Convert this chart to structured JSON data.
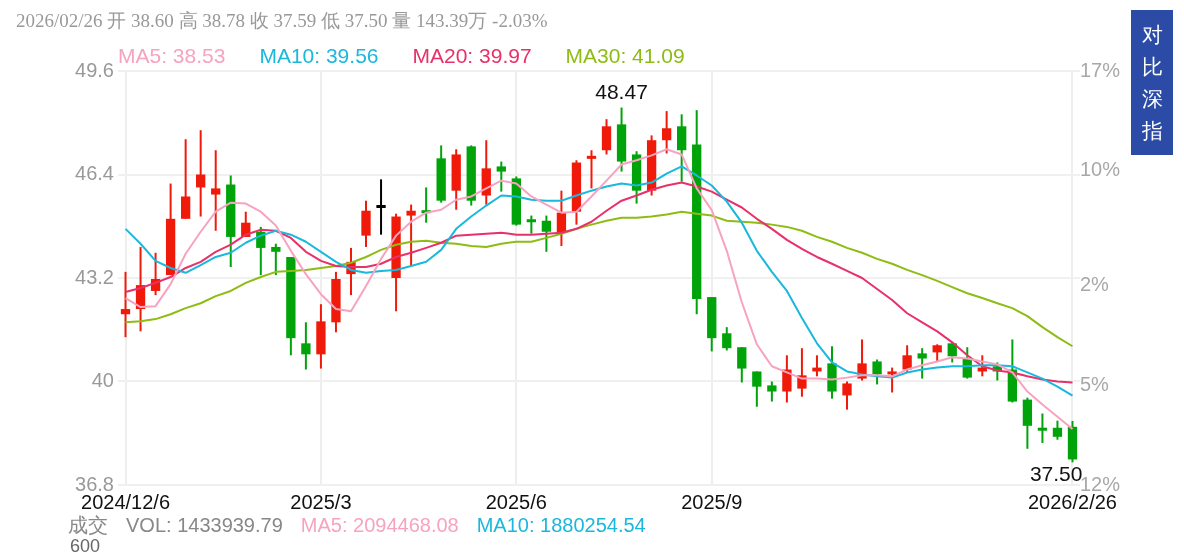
{
  "chart_data": {
    "type": "candlestick",
    "title": "2026/02/26 开 38.60 高 38.78 收 37.59 低 37.50 量 143.39万 -2.03%",
    "categories": [
      "2024/12/6",
      null,
      null,
      null,
      null,
      null,
      null,
      null,
      null,
      null,
      null,
      null,
      null,
      "2025/3",
      null,
      null,
      null,
      null,
      null,
      null,
      null,
      null,
      null,
      null,
      null,
      null,
      "2025/6",
      null,
      null,
      null,
      null,
      null,
      null,
      null,
      null,
      null,
      null,
      null,
      null,
      "2025/9",
      null,
      null,
      null,
      null,
      null,
      null,
      null,
      null,
      null,
      null,
      null,
      null,
      null,
      null,
      null,
      null,
      null,
      null,
      null,
      null,
      null,
      null,
      null,
      "2026/2/26"
    ],
    "ohlc": [
      [
        42.08,
        43.39,
        41.37,
        42.24
      ],
      [
        42.24,
        44.16,
        41.55,
        42.98
      ],
      [
        42.8,
        43.98,
        42.67,
        43.17
      ],
      [
        43.29,
        46.12,
        43.29,
        45.03
      ],
      [
        45.03,
        47.49,
        45.03,
        45.72
      ],
      [
        46.0,
        47.77,
        45.1,
        46.4
      ],
      [
        45.78,
        47.15,
        44.66,
        45.97
      ],
      [
        46.09,
        46.37,
        43.54,
        44.47
      ],
      [
        44.47,
        45.25,
        44.47,
        44.91
      ],
      [
        44.63,
        44.78,
        43.29,
        44.13
      ],
      [
        44.16,
        44.26,
        43.29,
        44.01
      ],
      [
        43.85,
        43.85,
        40.81,
        41.34
      ],
      [
        41.18,
        41.83,
        40.37,
        40.84
      ],
      [
        40.84,
        42.39,
        40.4,
        41.86
      ],
      [
        41.83,
        43.39,
        41.52,
        43.17
      ],
      [
        43.32,
        44.13,
        42.67,
        43.7
      ],
      [
        44.51,
        45.59,
        44.16,
        45.28
      ],
      [
        45.41,
        46.25,
        44.54,
        45.41
      ],
      [
        43.2,
        45.19,
        42.17,
        45.1
      ],
      [
        45.13,
        45.47,
        43.57,
        45.28
      ],
      [
        45.28,
        46.0,
        44.91,
        45.22
      ],
      [
        46.9,
        47.3,
        45.53,
        45.59
      ],
      [
        45.9,
        47.18,
        45.31,
        47.02
      ],
      [
        47.27,
        47.3,
        45.44,
        45.59
      ],
      [
        45.75,
        47.46,
        45.47,
        46.59
      ],
      [
        46.65,
        46.8,
        45.87,
        46.49
      ],
      [
        46.28,
        46.34,
        44.82,
        44.85
      ],
      [
        45.0,
        45.13,
        44.57,
        44.94
      ],
      [
        44.97,
        45.13,
        44.01,
        44.63
      ],
      [
        44.6,
        45.9,
        44.19,
        45.22
      ],
      [
        45.25,
        46.84,
        44.85,
        46.77
      ],
      [
        46.9,
        47.15,
        45.97,
        46.96
      ],
      [
        47.15,
        48.11,
        47.02,
        47.89
      ],
      [
        47.95,
        48.47,
        46.49,
        46.8
      ],
      [
        47.02,
        47.12,
        45.5,
        45.9
      ],
      [
        45.9,
        47.61,
        45.75,
        47.46
      ],
      [
        47.46,
        48.36,
        47.05,
        47.83
      ],
      [
        47.89,
        48.26,
        46.18,
        47.15
      ],
      [
        47.33,
        48.39,
        42.08,
        42.55
      ],
      [
        42.61,
        42.61,
        40.93,
        41.34
      ],
      [
        41.49,
        41.68,
        40.96,
        41.03
      ],
      [
        41.06,
        41.06,
        39.97,
        40.4
      ],
      [
        40.31,
        40.31,
        39.22,
        39.84
      ],
      [
        39.88,
        40.0,
        39.38,
        39.69
      ],
      [
        39.69,
        40.81,
        39.35,
        40.37
      ],
      [
        39.78,
        41.03,
        39.53,
        40.19
      ],
      [
        40.31,
        40.81,
        40.16,
        40.43
      ],
      [
        40.56,
        41.09,
        39.47,
        39.69
      ],
      [
        39.57,
        40.0,
        39.13,
        39.94
      ],
      [
        40.09,
        41.3,
        40.03,
        40.56
      ],
      [
        40.62,
        40.68,
        39.91,
        40.22
      ],
      [
        40.22,
        40.43,
        39.66,
        40.31
      ],
      [
        40.37,
        41.12,
        40.28,
        40.81
      ],
      [
        40.87,
        41.03,
        40.09,
        40.71
      ],
      [
        40.9,
        41.15,
        40.62,
        41.12
      ],
      [
        41.18,
        41.18,
        40.59,
        40.78
      ],
      [
        40.71,
        41.06,
        40.09,
        40.12
      ],
      [
        40.31,
        40.81,
        40.16,
        40.43
      ],
      [
        40.47,
        40.59,
        40.03,
        40.31
      ],
      [
        40.37,
        41.3,
        39.35,
        39.38
      ],
      [
        39.44,
        39.5,
        37.92,
        38.63
      ],
      [
        38.57,
        39.01,
        38.1,
        38.48
      ],
      [
        38.57,
        38.79,
        38.2,
        38.29
      ],
      [
        38.6,
        38.78,
        37.5,
        37.59
      ]
    ],
    "colors": [
      "#f01a0a",
      "#f01a0a",
      "#f01a0a",
      "#f01a0a",
      "#f01a0a",
      "#f01a0a",
      "#f01a0a",
      "#00a40a",
      "#f01a0a",
      "#00a40a",
      "#00a40a",
      "#00a40a",
      "#00a40a",
      "#f01a0a",
      "#f01a0a",
      "#f01a0a",
      "#f01a0a",
      "#000000",
      "#f01a0a",
      "#f01a0a",
      "#00a40a",
      "#00a40a",
      "#f01a0a",
      "#00a40a",
      "#f01a0a",
      "#00a40a",
      "#00a40a",
      "#00a40a",
      "#00a40a",
      "#f01a0a",
      "#f01a0a",
      "#f01a0a",
      "#f01a0a",
      "#00a40a",
      "#00a40a",
      "#f01a0a",
      "#f01a0a",
      "#00a40a",
      "#00a40a",
      "#00a40a",
      "#00a40a",
      "#00a40a",
      "#00a40a",
      "#00a40a",
      "#f01a0a",
      "#f01a0a",
      "#f01a0a",
      "#00a40a",
      "#f01a0a",
      "#f01a0a",
      "#00a40a",
      "#f01a0a",
      "#f01a0a",
      "#00a40a",
      "#f01a0a",
      "#00a40a",
      "#00a40a",
      "#f01a0a",
      "#00a40a",
      "#00a40a",
      "#00a40a",
      "#00a40a",
      "#00a40a",
      "#00a40a"
    ],
    "series": [
      {
        "name": "MA5: 38.53",
        "type": "line",
        "color": "#f7a3c0",
        "values": [
          42.58,
          42.3,
          42.33,
          43.01,
          43.95,
          44.63,
          45.25,
          45.53,
          45.5,
          45.25,
          44.82,
          44.04,
          43.32,
          42.7,
          42.24,
          42.17,
          42.95,
          43.79,
          44.51,
          44.94,
          45.22,
          45.31,
          45.62,
          45.72,
          45.97,
          46.21,
          46.12,
          45.72,
          45.47,
          45.22,
          45.25,
          45.72,
          46.21,
          46.71,
          46.84,
          46.99,
          47.18,
          47.02,
          45.97,
          45.3,
          44.04,
          42.45,
          41.15,
          40.47,
          40.28,
          40.09,
          40.09,
          40.06,
          40.12,
          40.19,
          40.19,
          40.16,
          40.37,
          40.5,
          40.62,
          40.75,
          40.71,
          40.62,
          40.53,
          40.28,
          39.69,
          39.29,
          38.91,
          38.53
        ]
      },
      {
        "name": "MA10: 39.56",
        "type": "line",
        "color": "#1ab8dc",
        "values": [
          44.72,
          44.26,
          43.73,
          43.51,
          43.36,
          43.6,
          43.85,
          43.98,
          44.29,
          44.51,
          44.66,
          44.54,
          44.32,
          44.01,
          43.7,
          43.45,
          43.36,
          43.42,
          43.45,
          43.57,
          43.7,
          44.07,
          44.72,
          45.1,
          45.44,
          45.75,
          45.72,
          45.62,
          45.59,
          45.59,
          45.75,
          45.9,
          46.03,
          46.12,
          46.06,
          46.15,
          46.43,
          46.65,
          46.37,
          46.06,
          45.56,
          44.91,
          44.04,
          43.39,
          42.8,
          41.96,
          41.18,
          40.59,
          40.31,
          40.22,
          40.16,
          40.12,
          40.28,
          40.37,
          40.43,
          40.47,
          40.47,
          40.5,
          40.5,
          40.47,
          40.28,
          40.09,
          39.84,
          39.56
        ]
      },
      {
        "name": "MA20: 39.97",
        "type": "line",
        "color": "#e8306a",
        "values": [
          42.77,
          42.89,
          43.05,
          43.23,
          43.51,
          43.7,
          44.01,
          44.23,
          44.54,
          44.69,
          44.66,
          44.44,
          44.01,
          43.73,
          43.57,
          43.54,
          43.54,
          43.64,
          43.85,
          43.98,
          44.13,
          44.29,
          44.51,
          44.54,
          44.57,
          44.6,
          44.54,
          44.54,
          44.57,
          44.6,
          44.72,
          44.94,
          45.28,
          45.59,
          45.75,
          45.93,
          46.06,
          46.15,
          46.03,
          45.87,
          45.62,
          45.38,
          45.03,
          44.72,
          44.38,
          44.1,
          43.85,
          43.64,
          43.42,
          43.2,
          42.86,
          42.52,
          42.11,
          41.83,
          41.55,
          41.21,
          40.81,
          40.47,
          40.34,
          40.28,
          40.16,
          40.06,
          40.0,
          39.97
        ]
      },
      {
        "name": "MA30: 41.09",
        "type": "line",
        "color": "#8fbc14",
        "values": [
          41.83,
          41.86,
          41.93,
          42.08,
          42.27,
          42.42,
          42.64,
          42.8,
          43.05,
          43.23,
          43.39,
          43.42,
          43.45,
          43.51,
          43.57,
          43.67,
          43.85,
          44.07,
          44.23,
          44.32,
          44.35,
          44.29,
          44.26,
          44.19,
          44.16,
          44.26,
          44.32,
          44.32,
          44.44,
          44.57,
          44.72,
          44.85,
          44.97,
          45.06,
          45.06,
          45.1,
          45.16,
          45.25,
          45.19,
          45.13,
          44.97,
          44.94,
          44.91,
          44.85,
          44.78,
          44.66,
          44.47,
          44.32,
          44.13,
          43.98,
          43.79,
          43.64,
          43.45,
          43.29,
          43.11,
          42.92,
          42.73,
          42.58,
          42.42,
          42.27,
          42.02,
          41.68,
          41.37,
          41.09
        ]
      }
    ],
    "ylim": [
      36.8,
      49.6
    ],
    "yticks": [
      36.8,
      40,
      43.2,
      46.4,
      49.6
    ],
    "y2lim": [
      -12,
      17
    ],
    "y2ticks": [
      {
        "value": -12,
        "label": "12%"
      },
      {
        "value": -5,
        "label": "5%"
      },
      {
        "value": 2,
        "label": "2%"
      },
      {
        "value": 10,
        "label": "10%"
      },
      {
        "value": 17,
        "label": "17%"
      }
    ],
    "grid": true,
    "legend": "top left",
    "annotations": [
      {
        "text": "48.47",
        "y": 48.47
      },
      "37.50",
      "成交",
      "VOL: 1433939.79",
      "MA5: 2094468.08",
      "MA10: 1880254.54",
      "对比深指",
      "600"
    ]
  }
}
